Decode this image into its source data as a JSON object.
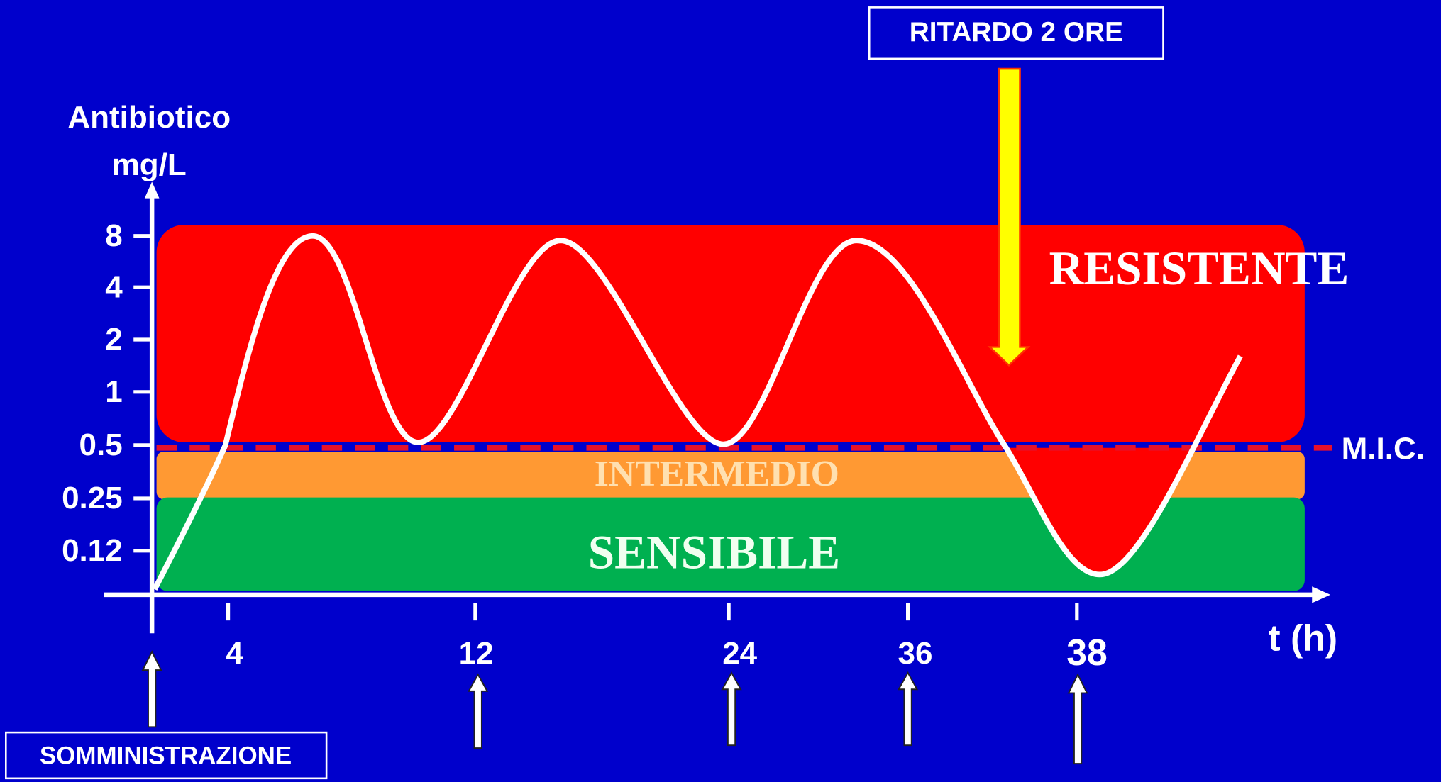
{
  "y_axis": {
    "label_lines": [
      "Antibiotico",
      "mg/L"
    ],
    "ticks": [
      "8",
      "4",
      "2",
      "1",
      "0.5",
      "0.25",
      "0.12"
    ]
  },
  "x_axis": {
    "label": "t (h)",
    "ticks": [
      "4",
      "12",
      "24",
      "36",
      "38"
    ]
  },
  "zones": {
    "resistant": "RESISTENTE",
    "intermediate": "INTERMEDIO",
    "sensitive": "SENSIBILE"
  },
  "threshold_label": "M.I.C.",
  "annotations": {
    "delay": "RITARDO 2 ORE",
    "administration": "SOMMINISTRAZIONE"
  }
}
